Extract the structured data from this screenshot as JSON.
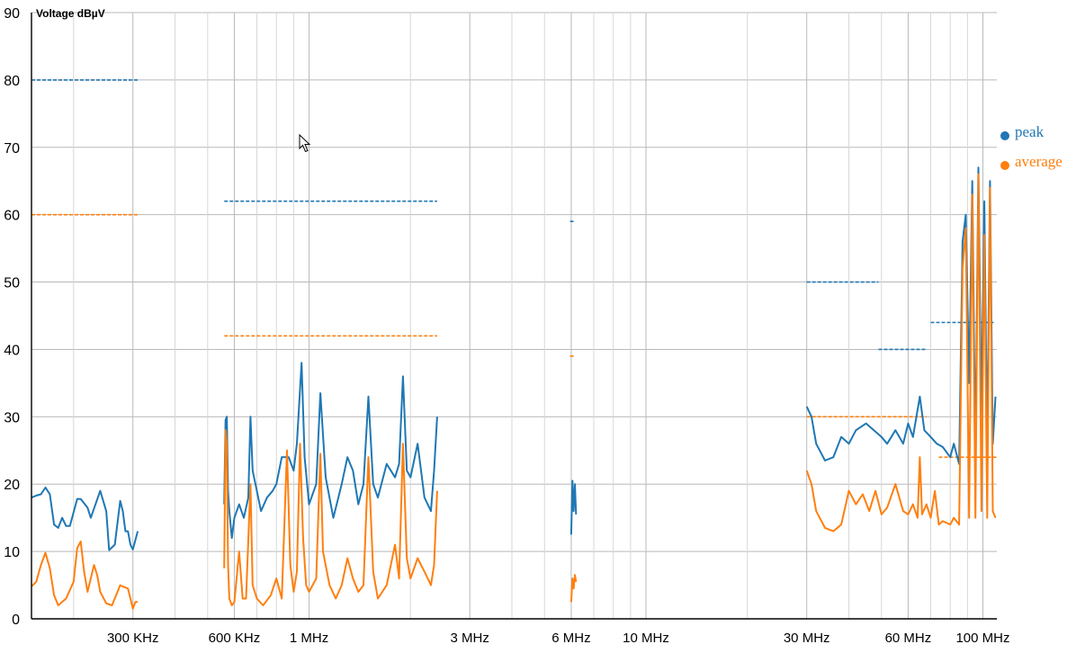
{
  "chart_data": {
    "type": "line",
    "ylabel": "Voltage dBµV",
    "y_ticks": [
      "0",
      "10",
      "20",
      "30",
      "40",
      "50",
      "60",
      "70",
      "80",
      "90"
    ],
    "ylim": [
      0,
      90
    ],
    "x_scale": "log",
    "xlim_hz": [
      150000,
      110000000
    ],
    "x_ticks": [
      {
        "label": "300 KHz",
        "hz": 300000
      },
      {
        "label": "600 KHz",
        "hz": 600000
      },
      {
        "label": "1 MHz",
        "hz": 1000000
      },
      {
        "label": "3 MHz",
        "hz": 3000000
      },
      {
        "label": "6 MHz",
        "hz": 6000000
      },
      {
        "label": "10 MHz",
        "hz": 10000000
      },
      {
        "label": "30 MHz",
        "hz": 30000000
      },
      {
        "label": "60 MHz",
        "hz": 60000000
      },
      {
        "label": "100 MHz",
        "hz": 100000000
      }
    ],
    "grid": true,
    "legend_position": "right",
    "colors": {
      "peak": "#1f77b4",
      "average": "#ff7f0e",
      "axis": "#000000"
    },
    "series": [
      {
        "name": "peak",
        "points": [
          [
            150000,
            18
          ],
          [
            155000,
            18.3
          ],
          [
            160000,
            18.5
          ],
          [
            165000,
            19.5
          ],
          [
            170000,
            18.5
          ],
          [
            175000,
            14
          ],
          [
            180000,
            13.5
          ],
          [
            185000,
            15
          ],
          [
            190000,
            13.8
          ],
          [
            195000,
            13.8
          ],
          [
            205000,
            17.8
          ],
          [
            210000,
            17.8
          ],
          [
            220000,
            16.5
          ],
          [
            225000,
            15
          ],
          [
            240000,
            19
          ],
          [
            250000,
            16
          ],
          [
            255000,
            10.2
          ],
          [
            265000,
            11
          ],
          [
            275000,
            17.5
          ],
          [
            280000,
            16
          ],
          [
            285000,
            13
          ],
          [
            290000,
            13
          ],
          [
            295000,
            11
          ],
          [
            300000,
            10.3
          ],
          [
            310000,
            13
          ],
          [
            560000,
            17
          ],
          [
            565000,
            29.5
          ],
          [
            570000,
            30
          ],
          [
            575000,
            19
          ],
          [
            580000,
            16
          ],
          [
            590000,
            12
          ],
          [
            600000,
            15
          ],
          [
            620000,
            17
          ],
          [
            640000,
            15
          ],
          [
            660000,
            18
          ],
          [
            670000,
            30
          ],
          [
            680000,
            22
          ],
          [
            700000,
            19
          ],
          [
            720000,
            16
          ],
          [
            750000,
            18
          ],
          [
            780000,
            19
          ],
          [
            800000,
            20
          ],
          [
            830000,
            24
          ],
          [
            870000,
            24
          ],
          [
            900000,
            22
          ],
          [
            920000,
            26
          ],
          [
            950000,
            38
          ],
          [
            970000,
            24
          ],
          [
            1000000,
            17
          ],
          [
            1050000,
            20
          ],
          [
            1080000,
            33.5
          ],
          [
            1120000,
            21
          ],
          [
            1180000,
            15
          ],
          [
            1250000,
            20
          ],
          [
            1300000,
            24
          ],
          [
            1350000,
            22
          ],
          [
            1400000,
            17
          ],
          [
            1450000,
            20
          ],
          [
            1500000,
            33
          ],
          [
            1550000,
            20
          ],
          [
            1600000,
            18
          ],
          [
            1700000,
            23
          ],
          [
            1800000,
            21
          ],
          [
            1850000,
            23
          ],
          [
            1900000,
            36
          ],
          [
            1950000,
            22
          ],
          [
            2000000,
            21
          ],
          [
            2100000,
            26
          ],
          [
            2200000,
            18
          ],
          [
            2300000,
            16
          ],
          [
            2350000,
            22
          ],
          [
            2400000,
            30
          ],
          [
            6000000,
            12.5
          ],
          [
            6050000,
            20.5
          ],
          [
            6100000,
            16
          ],
          [
            6150000,
            20
          ],
          [
            6200000,
            15.5
          ],
          [
            30000000,
            31.5
          ],
          [
            31000000,
            30
          ],
          [
            32000000,
            26
          ],
          [
            34000000,
            23.5
          ],
          [
            36000000,
            24
          ],
          [
            38000000,
            27
          ],
          [
            40000000,
            26
          ],
          [
            42000000,
            28
          ],
          [
            45000000,
            29
          ],
          [
            50000000,
            27
          ],
          [
            52000000,
            26
          ],
          [
            55000000,
            28
          ],
          [
            58000000,
            26
          ],
          [
            60000000,
            29
          ],
          [
            62000000,
            27
          ],
          [
            65000000,
            33
          ],
          [
            67000000,
            28
          ],
          [
            70000000,
            27
          ],
          [
            73000000,
            26
          ],
          [
            76000000,
            25.5
          ],
          [
            80000000,
            24
          ],
          [
            82000000,
            26
          ],
          [
            85000000,
            23
          ],
          [
            87000000,
            56
          ],
          [
            89000000,
            60
          ],
          [
            91000000,
            35
          ],
          [
            93000000,
            65
          ],
          [
            95000000,
            24
          ],
          [
            97000000,
            67
          ],
          [
            99000000,
            30
          ],
          [
            101000000,
            62
          ],
          [
            103000000,
            25
          ],
          [
            105000000,
            65
          ],
          [
            107000000,
            26
          ],
          [
            109000000,
            33
          ]
        ]
      },
      {
        "name": "average",
        "points": [
          [
            150000,
            4.8
          ],
          [
            155000,
            5.5
          ],
          [
            160000,
            8
          ],
          [
            165000,
            9.8
          ],
          [
            170000,
            7.5
          ],
          [
            175000,
            3.5
          ],
          [
            180000,
            2
          ],
          [
            190000,
            3
          ],
          [
            200000,
            5.5
          ],
          [
            205000,
            10.5
          ],
          [
            210000,
            11.5
          ],
          [
            215000,
            7
          ],
          [
            220000,
            4
          ],
          [
            230000,
            8
          ],
          [
            235000,
            6.5
          ],
          [
            240000,
            4
          ],
          [
            250000,
            2.3
          ],
          [
            260000,
            2
          ],
          [
            270000,
            4
          ],
          [
            275000,
            5
          ],
          [
            280000,
            4.8
          ],
          [
            290000,
            4.5
          ],
          [
            295000,
            3
          ],
          [
            300000,
            1.5
          ],
          [
            305000,
            2.5
          ],
          [
            310000,
            2.5
          ],
          [
            560000,
            7.5
          ],
          [
            565000,
            28
          ],
          [
            570000,
            26
          ],
          [
            575000,
            8
          ],
          [
            580000,
            3
          ],
          [
            590000,
            2
          ],
          [
            600000,
            2.5
          ],
          [
            620000,
            10
          ],
          [
            635000,
            3
          ],
          [
            650000,
            3
          ],
          [
            670000,
            20
          ],
          [
            680000,
            5
          ],
          [
            700000,
            3
          ],
          [
            730000,
            2
          ],
          [
            770000,
            3.5
          ],
          [
            800000,
            6
          ],
          [
            830000,
            3
          ],
          [
            860000,
            25
          ],
          [
            880000,
            8
          ],
          [
            900000,
            4
          ],
          [
            920000,
            7
          ],
          [
            940000,
            26
          ],
          [
            960000,
            12
          ],
          [
            980000,
            5
          ],
          [
            1000000,
            4
          ],
          [
            1050000,
            6
          ],
          [
            1080000,
            24.5
          ],
          [
            1100000,
            10
          ],
          [
            1150000,
            5
          ],
          [
            1200000,
            3
          ],
          [
            1250000,
            5
          ],
          [
            1300000,
            9
          ],
          [
            1350000,
            6
          ],
          [
            1400000,
            4
          ],
          [
            1450000,
            5
          ],
          [
            1500000,
            24
          ],
          [
            1550000,
            7
          ],
          [
            1600000,
            3
          ],
          [
            1700000,
            5
          ],
          [
            1800000,
            11
          ],
          [
            1850000,
            6
          ],
          [
            1900000,
            26
          ],
          [
            1950000,
            9
          ],
          [
            2000000,
            6
          ],
          [
            2100000,
            9
          ],
          [
            2200000,
            7
          ],
          [
            2300000,
            5
          ],
          [
            2350000,
            8
          ],
          [
            2400000,
            19
          ],
          [
            6000000,
            2.5
          ],
          [
            6050000,
            6
          ],
          [
            6100000,
            4.5
          ],
          [
            6150000,
            6.5
          ],
          [
            6200000,
            5.5
          ],
          [
            30000000,
            22
          ],
          [
            31000000,
            20
          ],
          [
            32000000,
            16
          ],
          [
            34000000,
            13.5
          ],
          [
            36000000,
            13
          ],
          [
            38000000,
            14
          ],
          [
            40000000,
            19
          ],
          [
            42000000,
            17
          ],
          [
            44000000,
            18.5
          ],
          [
            46000000,
            16
          ],
          [
            48000000,
            19
          ],
          [
            50000000,
            15.5
          ],
          [
            52000000,
            16.5
          ],
          [
            55000000,
            20
          ],
          [
            58000000,
            16
          ],
          [
            60000000,
            15.5
          ],
          [
            62000000,
            17
          ],
          [
            64000000,
            15
          ],
          [
            65000000,
            24
          ],
          [
            66000000,
            15.5
          ],
          [
            68000000,
            17
          ],
          [
            70000000,
            15
          ],
          [
            72000000,
            19
          ],
          [
            74000000,
            14
          ],
          [
            76000000,
            14.5
          ],
          [
            80000000,
            14
          ],
          [
            82000000,
            15
          ],
          [
            85000000,
            14
          ],
          [
            87000000,
            52
          ],
          [
            89000000,
            58
          ],
          [
            91000000,
            15
          ],
          [
            93000000,
            63
          ],
          [
            95000000,
            15
          ],
          [
            97000000,
            66
          ],
          [
            99000000,
            16
          ],
          [
            101000000,
            57
          ],
          [
            103000000,
            15
          ],
          [
            105000000,
            64
          ],
          [
            107000000,
            16
          ],
          [
            109000000,
            15
          ]
        ]
      }
    ],
    "limit_lines": [
      {
        "series": "peak",
        "x_hz": [
          150000,
          310000
        ],
        "y": 80
      },
      {
        "series": "average",
        "x_hz": [
          150000,
          310000
        ],
        "y": 60
      },
      {
        "series": "peak",
        "x_hz": [
          560000,
          2400000
        ],
        "y": 62
      },
      {
        "series": "average",
        "x_hz": [
          560000,
          2400000
        ],
        "y": 42
      },
      {
        "series": "peak",
        "x_hz": [
          5950000,
          6150000
        ],
        "y": 59
      },
      {
        "series": "average",
        "x_hz": [
          5950000,
          6150000
        ],
        "y": 39
      },
      {
        "series": "peak",
        "x_hz": [
          30000000,
          49000000
        ],
        "y": 50
      },
      {
        "series": "average",
        "x_hz": [
          30000000,
          68000000
        ],
        "y": 30
      },
      {
        "series": "peak",
        "x_hz": [
          49000000,
          68000000
        ],
        "y": 40
      },
      {
        "series": "peak",
        "x_hz": [
          70000000,
          108000000
        ],
        "y": 44
      },
      {
        "series": "average",
        "x_hz": [
          74000000,
          110000000
        ],
        "y": 24
      }
    ],
    "legend": [
      {
        "name": "peak",
        "color": "#1f77b4"
      },
      {
        "name": "average",
        "color": "#ff7f0e"
      }
    ]
  }
}
